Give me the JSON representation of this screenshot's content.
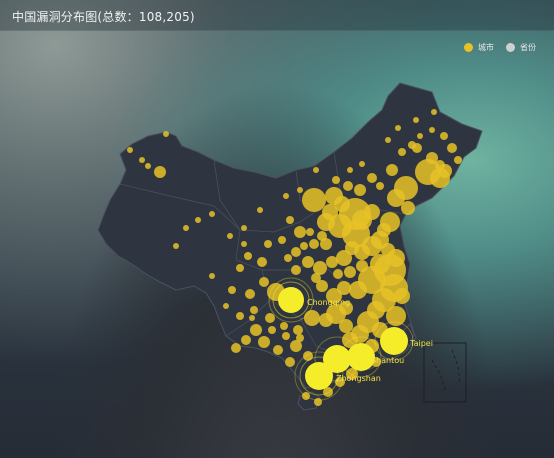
{
  "header": {
    "title": "中国漏洞分布图(总数：108,205)"
  },
  "legend": {
    "items": [
      {
        "label": "城市",
        "color": "#e6c227"
      },
      {
        "label": "省份",
        "color": "#d0d0d0"
      }
    ]
  },
  "colors": {
    "land": "#2f3540",
    "border": "#4a5260",
    "marker": "#e6c227",
    "highlight": "#f5ec2a"
  },
  "labels": {
    "chongqing": "Chongqing",
    "taipei": "Taipei",
    "shantou": "Shantou",
    "zhongshan": "Zhongshan"
  }
}
